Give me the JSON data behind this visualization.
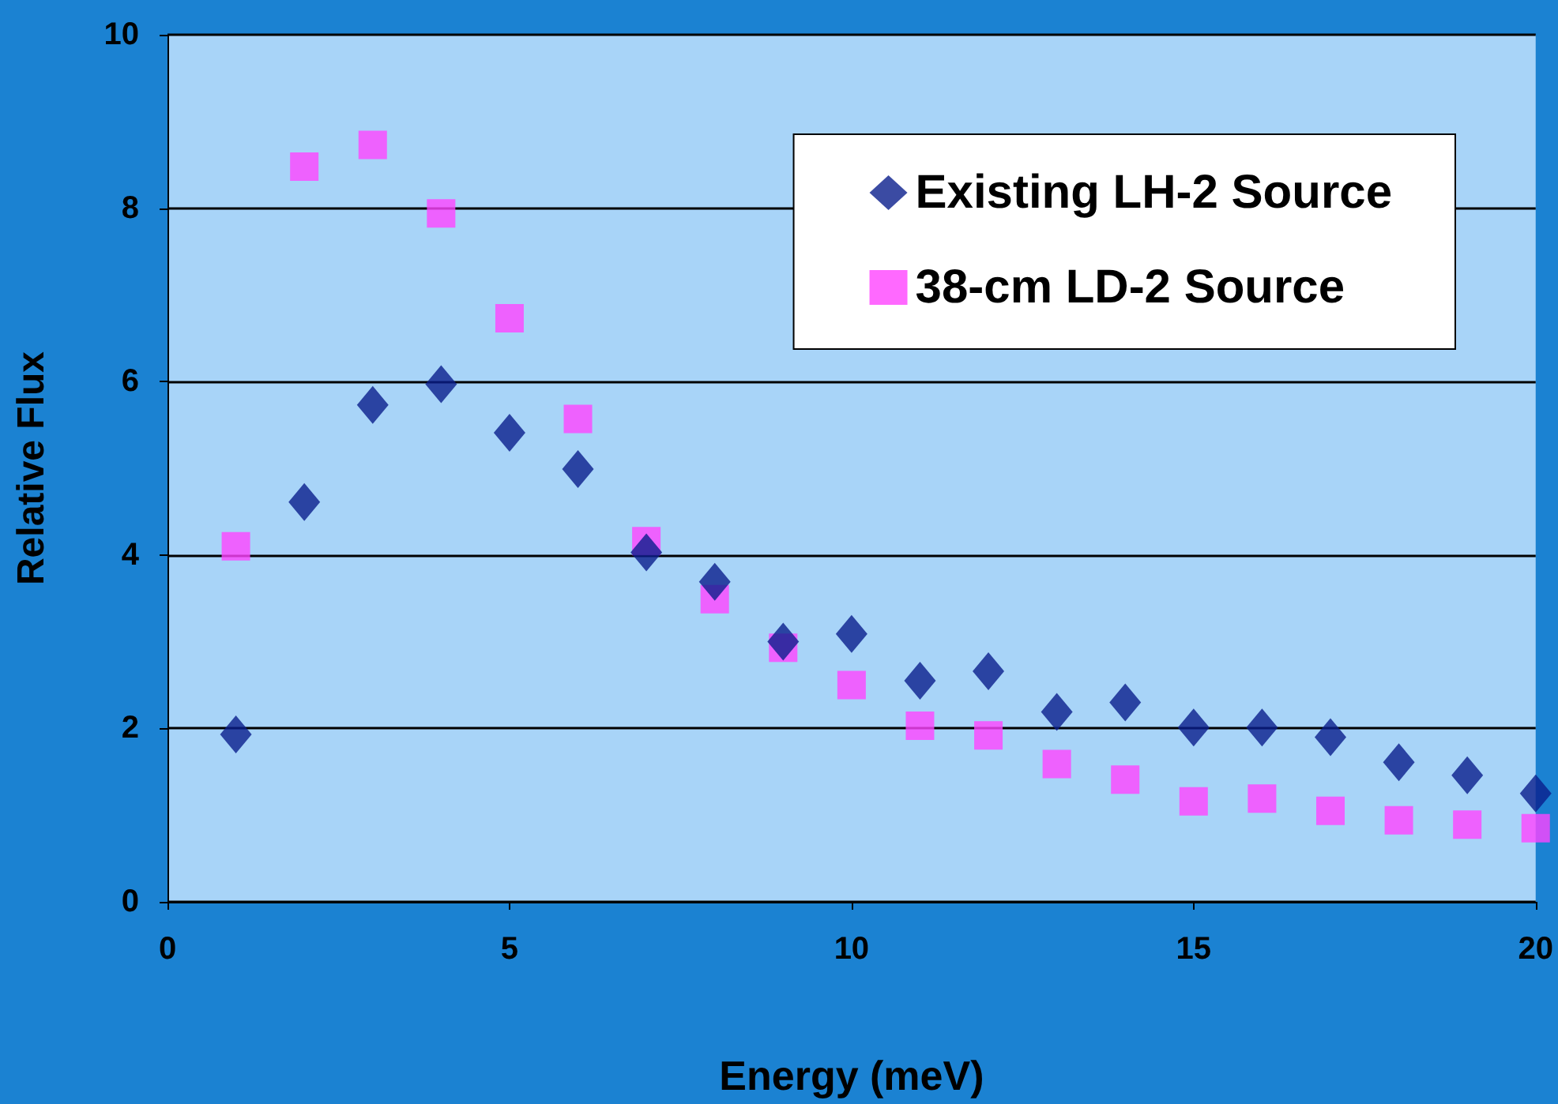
{
  "chart_data": {
    "type": "scatter",
    "xlabel": "Energy (meV)",
    "ylabel": "Relative Flux",
    "xlim": [
      0,
      20
    ],
    "xticks": [
      0,
      5,
      10,
      15,
      20
    ],
    "ylim": [
      0,
      10
    ],
    "yticks": [
      0,
      2,
      4,
      6,
      8,
      10
    ],
    "grid": "y",
    "legend": "top right",
    "x": [
      1,
      2,
      3,
      4,
      5,
      6,
      7,
      8,
      9,
      10,
      11,
      12,
      13,
      14,
      15,
      16,
      17,
      18,
      19,
      20
    ],
    "series": [
      {
        "name": "Existing LH-2 Source",
        "color": "#0a1e8c",
        "marker": "diamond",
        "values": [
          1.93,
          4.61,
          5.73,
          5.97,
          5.41,
          4.99,
          4.03,
          3.69,
          3.0,
          3.09,
          2.55,
          2.66,
          2.19,
          2.3,
          2.01,
          2.01,
          1.9,
          1.61,
          1.46,
          1.25
        ]
      },
      {
        "name": "38-cm LD-2 Source",
        "color": "#ff44ff",
        "marker": "square",
        "values": [
          4.1,
          8.48,
          8.73,
          7.94,
          6.73,
          5.57,
          4.16,
          3.49,
          2.93,
          2.5,
          2.03,
          1.92,
          1.59,
          1.41,
          1.16,
          1.19,
          1.05,
          0.94,
          0.89,
          0.85
        ]
      }
    ]
  }
}
